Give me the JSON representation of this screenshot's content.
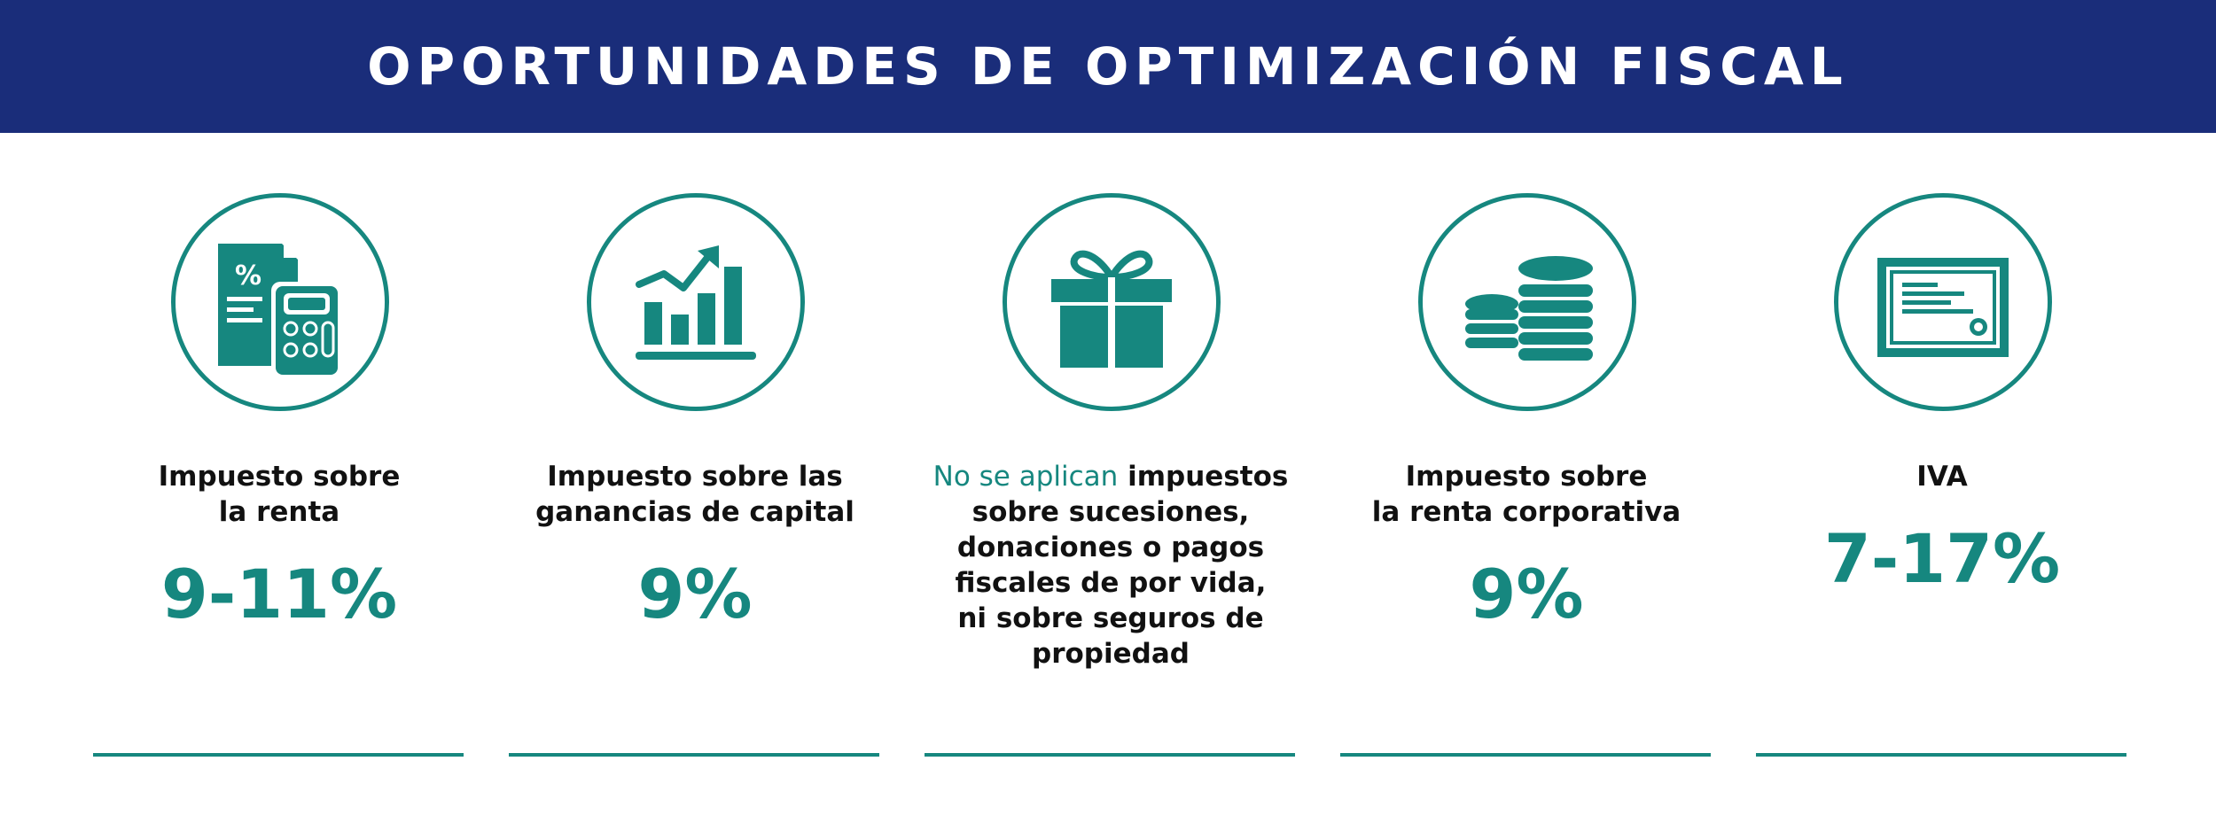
{
  "header": {
    "title": "OPORTUNIDADES DE OPTIMIZACIÓN FISCAL"
  },
  "colors": {
    "brand_navy": "#1a2d7a",
    "accent_teal": "#16877f",
    "text": "#111111"
  },
  "cards": [
    {
      "icon": "calculator-document-icon",
      "label_lines": [
        "Impuesto sobre",
        "la renta"
      ],
      "value": "9-11%"
    },
    {
      "icon": "growth-chart-icon",
      "label_lines": [
        "Impuesto sobre las",
        "ganancias de capital"
      ],
      "value": "9%"
    },
    {
      "icon": "gift-icon",
      "label_highlight": "No se aplican",
      "label_rest_first": " impuestos",
      "label_lines": [
        "sobre sucesiones,",
        "donaciones o pagos",
        "fiscales de por vida,",
        "ni sobre seguros de",
        "propiedad"
      ]
    },
    {
      "icon": "coins-stack-icon",
      "label_lines": [
        "Impuesto sobre",
        "la renta corporativa"
      ],
      "value": "9%"
    },
    {
      "icon": "certificate-icon",
      "label_lines": [
        "IVA"
      ],
      "value": "7-17%"
    }
  ],
  "glyphs": {
    "percent": "%"
  }
}
